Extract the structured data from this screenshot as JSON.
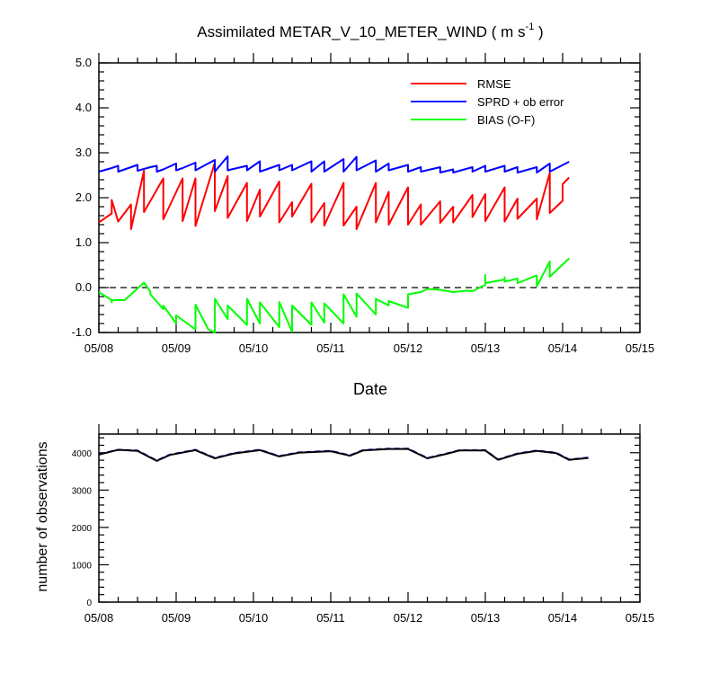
{
  "chart_data": [
    {
      "type": "line",
      "title": "Assimilated METAR_V_10_METER_WIND ( m s",
      "title_superscript": "-1",
      "title_close": " )",
      "xlabel": "Date",
      "ylabel": "",
      "xlim": [
        0,
        84
      ],
      "ylim": [
        -1.0,
        5.0
      ],
      "x_tick_labels": [
        "05/08",
        "05/09",
        "05/10",
        "05/11",
        "05/12",
        "05/13",
        "05/14",
        "05/15"
      ],
      "y_tick_labels": [
        "-1.0",
        "0.0",
        "1.0",
        "2.0",
        "3.0",
        "4.0",
        "5.0"
      ],
      "legend_position": "top-right",
      "reference_line": 0.0,
      "series": [
        {
          "name": "RMSE",
          "color": "#ff0000",
          "points": [
            [
              0,
              1.45
            ],
            [
              2,
              1.65
            ],
            [
              2,
              1.95
            ],
            [
              3,
              1.47
            ],
            [
              5,
              1.85
            ],
            [
              5,
              1.3
            ],
            [
              7,
              2.6
            ],
            [
              7,
              1.68
            ],
            [
              10,
              2.43
            ],
            [
              10,
              1.52
            ],
            [
              13,
              2.43
            ],
            [
              13,
              1.48
            ],
            [
              15,
              2.43
            ],
            [
              15,
              1.37
            ],
            [
              18,
              2.78
            ],
            [
              18,
              1.7
            ],
            [
              20,
              2.48
            ],
            [
              20,
              1.55
            ],
            [
              23,
              2.33
            ],
            [
              23,
              1.48
            ],
            [
              25,
              2.18
            ],
            [
              25,
              1.58
            ],
            [
              28,
              2.36
            ],
            [
              28,
              1.45
            ],
            [
              30,
              1.9
            ],
            [
              30,
              1.58
            ],
            [
              33,
              2.31
            ],
            [
              33,
              1.45
            ],
            [
              35,
              1.88
            ],
            [
              35,
              1.38
            ],
            [
              38,
              2.33
            ],
            [
              38,
              1.38
            ],
            [
              40,
              1.8
            ],
            [
              40,
              1.3
            ],
            [
              43,
              2.33
            ],
            [
              43,
              1.45
            ],
            [
              45,
              2.13
            ],
            [
              45,
              1.4
            ],
            [
              48,
              2.23
            ],
            [
              48,
              1.4
            ],
            [
              50,
              1.85
            ],
            [
              50,
              1.4
            ],
            [
              53,
              1.92
            ],
            [
              53,
              1.44
            ],
            [
              55,
              1.8
            ],
            [
              55,
              1.45
            ],
            [
              58,
              2.06
            ],
            [
              58,
              1.57
            ],
            [
              60,
              2.08
            ],
            [
              60,
              1.48
            ],
            [
              63,
              2.23
            ],
            [
              63,
              1.47
            ],
            [
              65,
              1.98
            ],
            [
              65,
              1.53
            ],
            [
              68,
              1.98
            ],
            [
              68,
              1.52
            ],
            [
              70,
              2.55
            ],
            [
              70,
              1.66
            ],
            [
              72,
              1.93
            ],
            [
              72,
              2.3
            ],
            [
              73,
              2.45
            ]
          ]
        },
        {
          "name": "SPRD + ob error",
          "color": "#0000ff",
          "points": [
            [
              0,
              2.58
            ],
            [
              2,
              2.66
            ],
            [
              3,
              2.71
            ],
            [
              3,
              2.58
            ],
            [
              5,
              2.68
            ],
            [
              6,
              2.73
            ],
            [
              6,
              2.6
            ],
            [
              8,
              2.68
            ],
            [
              9,
              2.71
            ],
            [
              9,
              2.58
            ],
            [
              10,
              2.63
            ],
            [
              12,
              2.76
            ],
            [
              12,
              2.61
            ],
            [
              13,
              2.66
            ],
            [
              15,
              2.78
            ],
            [
              15,
              2.61
            ],
            [
              18,
              2.84
            ],
            [
              18,
              2.58
            ],
            [
              20,
              2.92
            ],
            [
              20,
              2.61
            ],
            [
              23,
              2.71
            ],
            [
              23,
              2.61
            ],
            [
              25,
              2.81
            ],
            [
              25,
              2.58
            ],
            [
              28,
              2.73
            ],
            [
              28,
              2.61
            ],
            [
              30,
              2.73
            ],
            [
              30,
              2.61
            ],
            [
              33,
              2.81
            ],
            [
              33,
              2.58
            ],
            [
              35,
              2.81
            ],
            [
              35,
              2.58
            ],
            [
              38,
              2.86
            ],
            [
              38,
              2.58
            ],
            [
              40,
              2.91
            ],
            [
              40,
              2.61
            ],
            [
              43,
              2.83
            ],
            [
              43,
              2.58
            ],
            [
              45,
              2.76
            ],
            [
              45,
              2.61
            ],
            [
              48,
              2.73
            ],
            [
              48,
              2.58
            ],
            [
              50,
              2.68
            ],
            [
              50,
              2.58
            ],
            [
              53,
              2.68
            ],
            [
              53,
              2.56
            ],
            [
              55,
              2.63
            ],
            [
              55,
              2.56
            ],
            [
              58,
              2.68
            ],
            [
              58,
              2.58
            ],
            [
              60,
              2.71
            ],
            [
              60,
              2.58
            ],
            [
              63,
              2.71
            ],
            [
              63,
              2.58
            ],
            [
              65,
              2.68
            ],
            [
              65,
              2.56
            ],
            [
              68,
              2.68
            ],
            [
              68,
              2.56
            ],
            [
              70,
              2.76
            ],
            [
              70,
              2.58
            ],
            [
              73,
              2.8
            ]
          ]
        },
        {
          "name": "BIAS (O-F)",
          "color": "#00ff00",
          "points": [
            [
              0,
              -0.1
            ],
            [
              2,
              -0.28
            ],
            [
              2,
              -0.33
            ],
            [
              2,
              -0.28
            ],
            [
              4,
              -0.28
            ],
            [
              7,
              0.11
            ],
            [
              8,
              -0.09
            ],
            [
              8,
              -0.15
            ],
            [
              10,
              -0.48
            ],
            [
              10,
              -0.4
            ],
            [
              12,
              -0.8
            ],
            [
              12,
              -0.62
            ],
            [
              15,
              -0.93
            ],
            [
              15,
              -0.38
            ],
            [
              17,
              -0.93
            ],
            [
              18,
              -1.0
            ],
            [
              18,
              -0.25
            ],
            [
              20,
              -0.7
            ],
            [
              20,
              -0.4
            ],
            [
              23,
              -0.83
            ],
            [
              23,
              -0.25
            ],
            [
              25,
              -0.8
            ],
            [
              25,
              -0.33
            ],
            [
              28,
              -0.88
            ],
            [
              28,
              -0.32
            ],
            [
              30,
              -0.98
            ],
            [
              30,
              -0.4
            ],
            [
              33,
              -0.83
            ],
            [
              33,
              -0.33
            ],
            [
              35,
              -0.78
            ],
            [
              35,
              -0.35
            ],
            [
              38,
              -0.8
            ],
            [
              38,
              -0.15
            ],
            [
              40,
              -0.65
            ],
            [
              40,
              -0.13
            ],
            [
              43,
              -0.6
            ],
            [
              43,
              -0.25
            ],
            [
              45,
              -0.4
            ],
            [
              45,
              -0.3
            ],
            [
              48,
              -0.45
            ],
            [
              48,
              -0.15
            ],
            [
              50,
              -0.1
            ],
            [
              51,
              -0.03
            ],
            [
              53,
              -0.05
            ],
            [
              55,
              -0.1
            ],
            [
              57,
              -0.07
            ],
            [
              58,
              -0.08
            ],
            [
              60,
              0.06
            ],
            [
              60,
              0.28
            ],
            [
              60,
              0.1
            ],
            [
              63,
              0.18
            ],
            [
              63,
              0.23
            ],
            [
              63,
              0.13
            ],
            [
              65,
              0.2
            ],
            [
              65,
              0.1
            ],
            [
              68,
              0.27
            ],
            [
              68,
              0.03
            ],
            [
              70,
              0.58
            ],
            [
              70,
              0.24
            ],
            [
              73,
              0.65
            ]
          ]
        }
      ]
    },
    {
      "type": "line",
      "title": "",
      "xlabel": "",
      "ylabel": "number of observations",
      "xlim": [
        0,
        84
      ],
      "ylim": [
        0,
        4500
      ],
      "x_tick_labels": [
        "05/08",
        "05/09",
        "05/10",
        "05/11",
        "05/12",
        "05/13",
        "05/14",
        "05/15"
      ],
      "y_tick_labels": [
        "0",
        "1000",
        "2000",
        "3000",
        "4000"
      ],
      "series": [
        {
          "color": "#0000ff",
          "dashed": true,
          "points": [
            [
              0,
              3960
            ],
            [
              3,
              4080
            ],
            [
              6,
              4060
            ],
            [
              9,
              3790
            ],
            [
              11,
              3950
            ],
            [
              15,
              4080
            ],
            [
              18,
              3860
            ],
            [
              21,
              3990
            ],
            [
              25,
              4080
            ],
            [
              28,
              3910
            ],
            [
              31,
              4010
            ],
            [
              36,
              4050
            ],
            [
              39,
              3930
            ],
            [
              41,
              4070
            ],
            [
              45,
              4110
            ],
            [
              48,
              4110
            ],
            [
              51,
              3860
            ],
            [
              54,
              3980
            ],
            [
              56,
              4070
            ],
            [
              60,
              4070
            ],
            [
              62,
              3820
            ],
            [
              65,
              3980
            ],
            [
              68,
              4060
            ],
            [
              71,
              4000
            ],
            [
              73,
              3820
            ],
            [
              76,
              3870
            ]
          ]
        },
        {
          "color": "#000000",
          "points": [
            [
              0,
              3950
            ],
            [
              3,
              4080
            ],
            [
              6,
              4050
            ],
            [
              9,
              3780
            ],
            [
              11,
              3940
            ],
            [
              15,
              4070
            ],
            [
              18,
              3850
            ],
            [
              21,
              3980
            ],
            [
              25,
              4070
            ],
            [
              28,
              3900
            ],
            [
              31,
              4000
            ],
            [
              36,
              4040
            ],
            [
              39,
              3920
            ],
            [
              41,
              4060
            ],
            [
              45,
              4100
            ],
            [
              48,
              4100
            ],
            [
              51,
              3850
            ],
            [
              54,
              3970
            ],
            [
              56,
              4060
            ],
            [
              60,
              4060
            ],
            [
              62,
              3810
            ],
            [
              65,
              3970
            ],
            [
              68,
              4050
            ],
            [
              71,
              3990
            ],
            [
              73,
              3810
            ],
            [
              76,
              3860
            ]
          ]
        }
      ]
    }
  ]
}
